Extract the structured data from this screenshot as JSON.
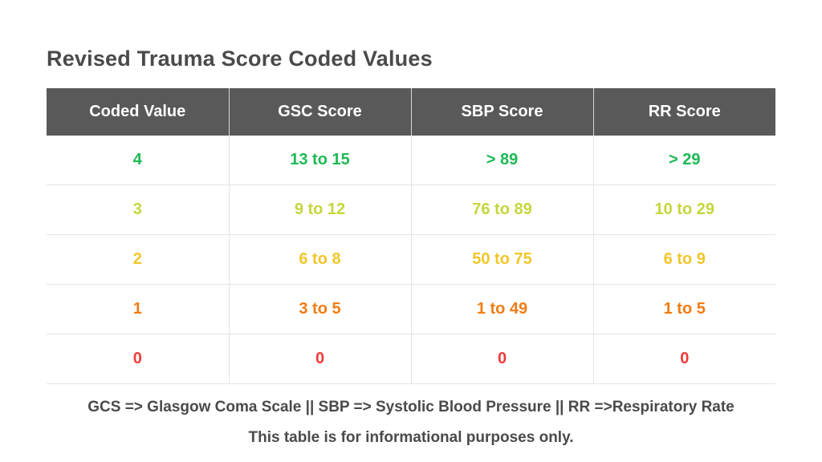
{
  "title": "Revised Trauma Score Coded Values",
  "table": {
    "headers": [
      "Coded Value",
      "GSC Score",
      "SBP Score",
      "RR Score"
    ],
    "rows": [
      {
        "color": "#1db954",
        "cells": [
          "4",
          "13 to 15",
          "> 89",
          "> 29"
        ]
      },
      {
        "color": "#c6d63c",
        "cells": [
          "3",
          "9 to 12",
          "76 to 89",
          "10 to 29"
        ]
      },
      {
        "color": "#f2c62a",
        "cells": [
          "2",
          "6 to 8",
          "50 to 75",
          "6 to 9"
        ]
      },
      {
        "color": "#f07c13",
        "cells": [
          "1",
          "3 to 5",
          "1 to 49",
          "1 to 5"
        ]
      },
      {
        "color": "#ef3b3b",
        "cells": [
          "0",
          "0",
          "0",
          "0"
        ]
      }
    ]
  },
  "footer": {
    "legend": "GCS => Glasgow Coma Scale || SBP => Systolic Blood Pressure || RR =>Respiratory Rate",
    "disclaimer": "This table is for informational purposes only."
  }
}
